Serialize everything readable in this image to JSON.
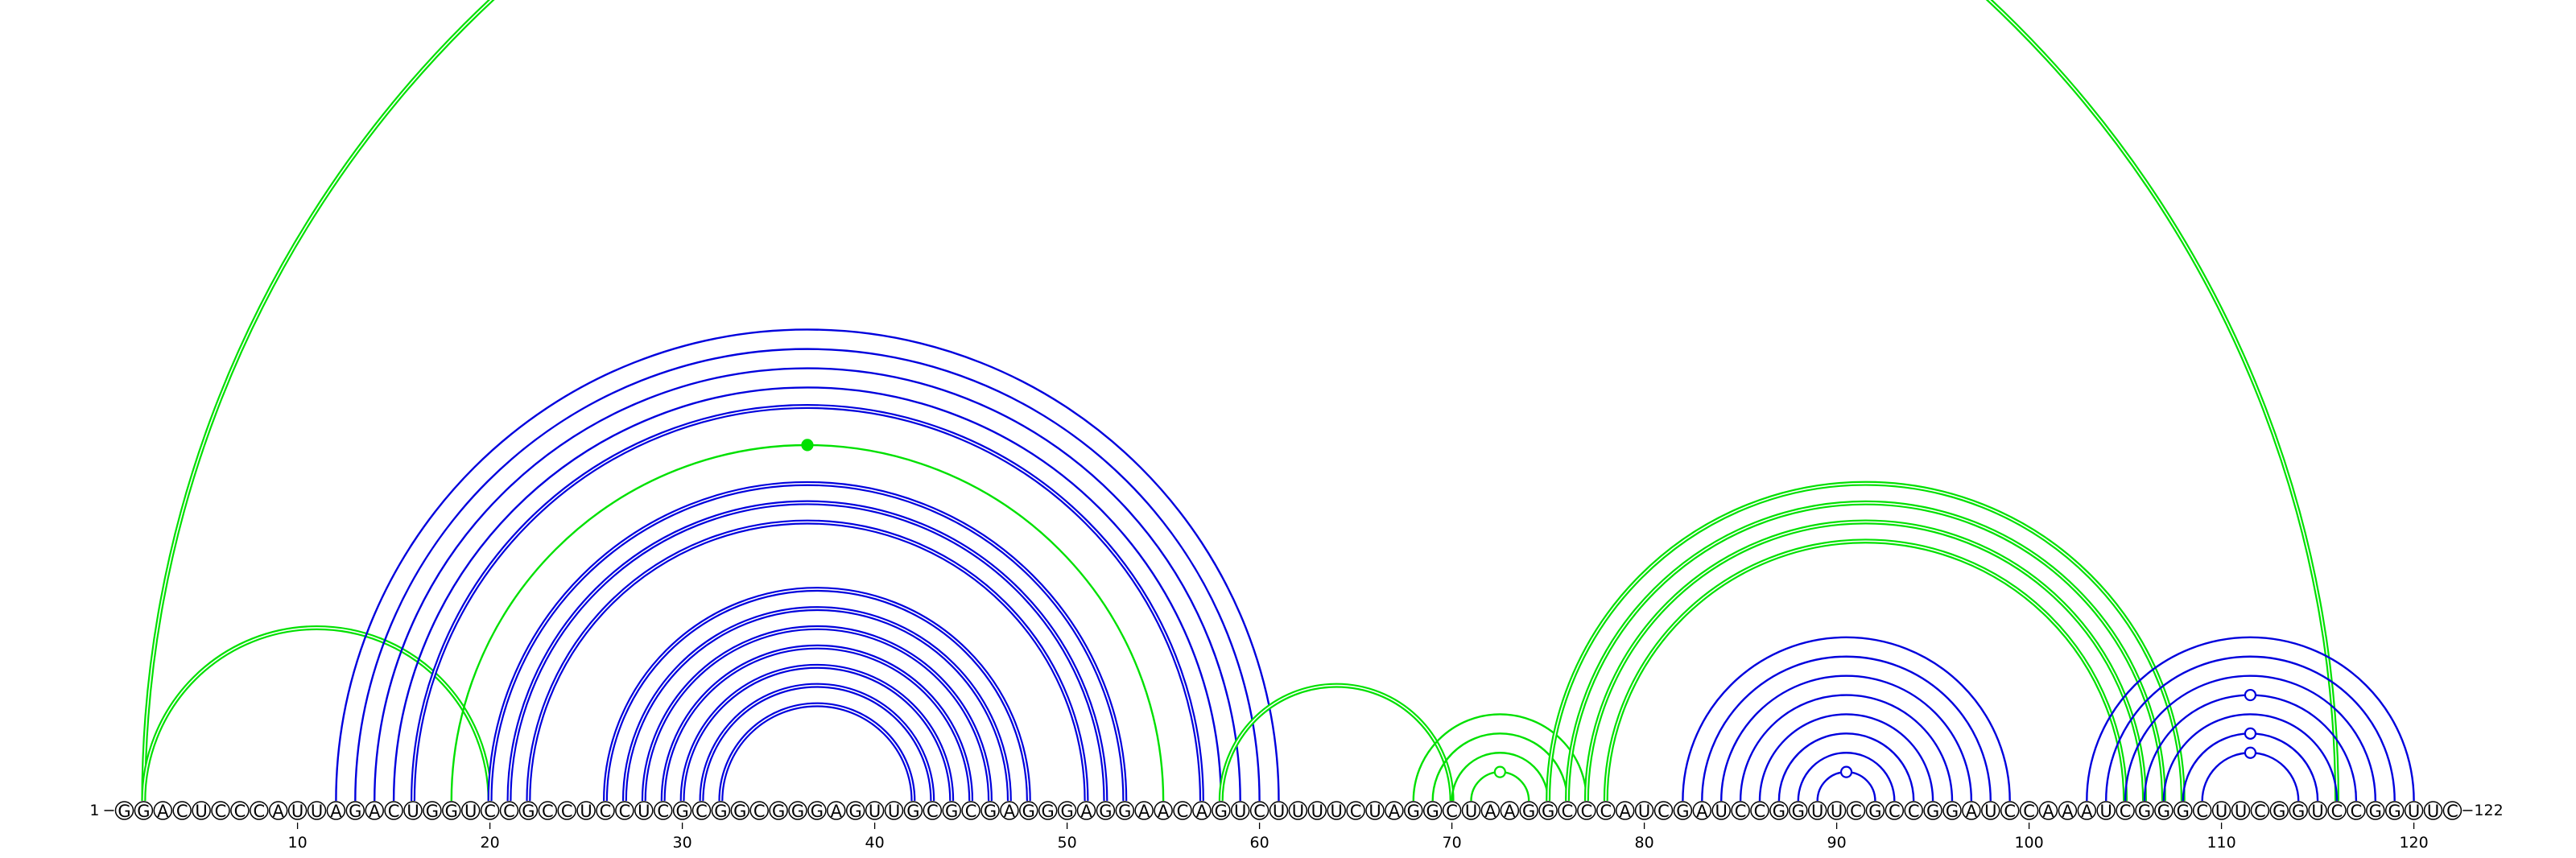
{
  "sequence": "GGACUCCCAUUAGACUGGUCCGCCUCCUCGCGGCGGGAGUUGCGCGAGGGAGGAACAGUCUUUUCUAGGCUAAGGCCCAUCGAUCCGGUUCGCCGGAUCCAAAUCGGGCUUCGGUCCGGUUC",
  "start_label": "1",
  "end_label": "122",
  "tick_labels": [
    "10",
    "20",
    "30",
    "40",
    "50",
    "60",
    "70",
    "80",
    "90",
    "100",
    "110",
    "120"
  ],
  "colors": {
    "blue_arc": "#0000dd",
    "green_arc": "#00e000"
  },
  "helices": [
    {
      "color": "green",
      "double": true,
      "pairs": [
        [
          2,
          116
        ]
      ]
    },
    {
      "color": "green",
      "double": true,
      "pairs": [
        [
          2,
          20
        ]
      ]
    },
    {
      "color": "blue",
      "double": false,
      "pairs": [
        [
          12,
          61
        ],
        [
          13,
          60
        ],
        [
          14,
          59
        ],
        [
          15,
          58
        ]
      ]
    },
    {
      "color": "blue",
      "double": true,
      "pairs": [
        [
          16,
          57
        ]
      ]
    },
    {
      "color": "green",
      "double": false,
      "pairs": [
        [
          18,
          55
        ]
      ],
      "marker": {
        "style": "filled"
      }
    },
    {
      "color": "blue",
      "double": true,
      "pairs": [
        [
          20,
          53
        ],
        [
          21,
          52
        ],
        [
          22,
          51
        ]
      ]
    },
    {
      "color": "blue",
      "double": true,
      "pairs": [
        [
          26,
          48
        ],
        [
          27,
          47
        ],
        [
          28,
          46
        ],
        [
          29,
          45
        ],
        [
          30,
          44
        ],
        [
          31,
          43
        ],
        [
          32,
          42
        ]
      ]
    },
    {
      "color": "green",
      "double": true,
      "pairs": [
        [
          58,
          70
        ]
      ]
    },
    {
      "color": "green",
      "double": false,
      "pairs": [
        [
          68,
          77
        ],
        [
          69,
          76
        ],
        [
          70,
          75
        ]
      ]
    },
    {
      "color": "green",
      "double": false,
      "pairs": [
        [
          71,
          74
        ]
      ],
      "marker": {
        "style": "open"
      }
    },
    {
      "color": "green",
      "double": true,
      "pairs": [
        [
          75,
          108
        ],
        [
          76,
          107
        ],
        [
          77,
          106
        ],
        [
          78,
          105
        ]
      ]
    },
    {
      "color": "blue",
      "double": false,
      "pairs": [
        [
          82,
          99
        ],
        [
          83,
          98
        ],
        [
          84,
          97
        ],
        [
          85,
          96
        ],
        [
          86,
          95
        ],
        [
          87,
          94
        ],
        [
          88,
          93
        ]
      ]
    },
    {
      "color": "blue",
      "double": false,
      "pairs": [
        [
          89,
          92
        ]
      ],
      "marker": {
        "style": "open"
      }
    },
    {
      "color": "blue",
      "double": false,
      "pairs": [
        [
          103,
          120
        ],
        [
          104,
          119
        ],
        [
          105,
          118
        ],
        [
          106,
          117
        ]
      ],
      "marker": {
        "style": "open"
      }
    },
    {
      "color": "blue",
      "double": false,
      "pairs": [
        [
          107,
          116
        ],
        [
          108,
          115
        ]
      ],
      "marker": {
        "style": "open"
      }
    },
    {
      "color": "blue",
      "double": false,
      "pairs": [
        [
          109,
          114
        ]
      ],
      "marker": {
        "style": "open"
      }
    }
  ]
}
